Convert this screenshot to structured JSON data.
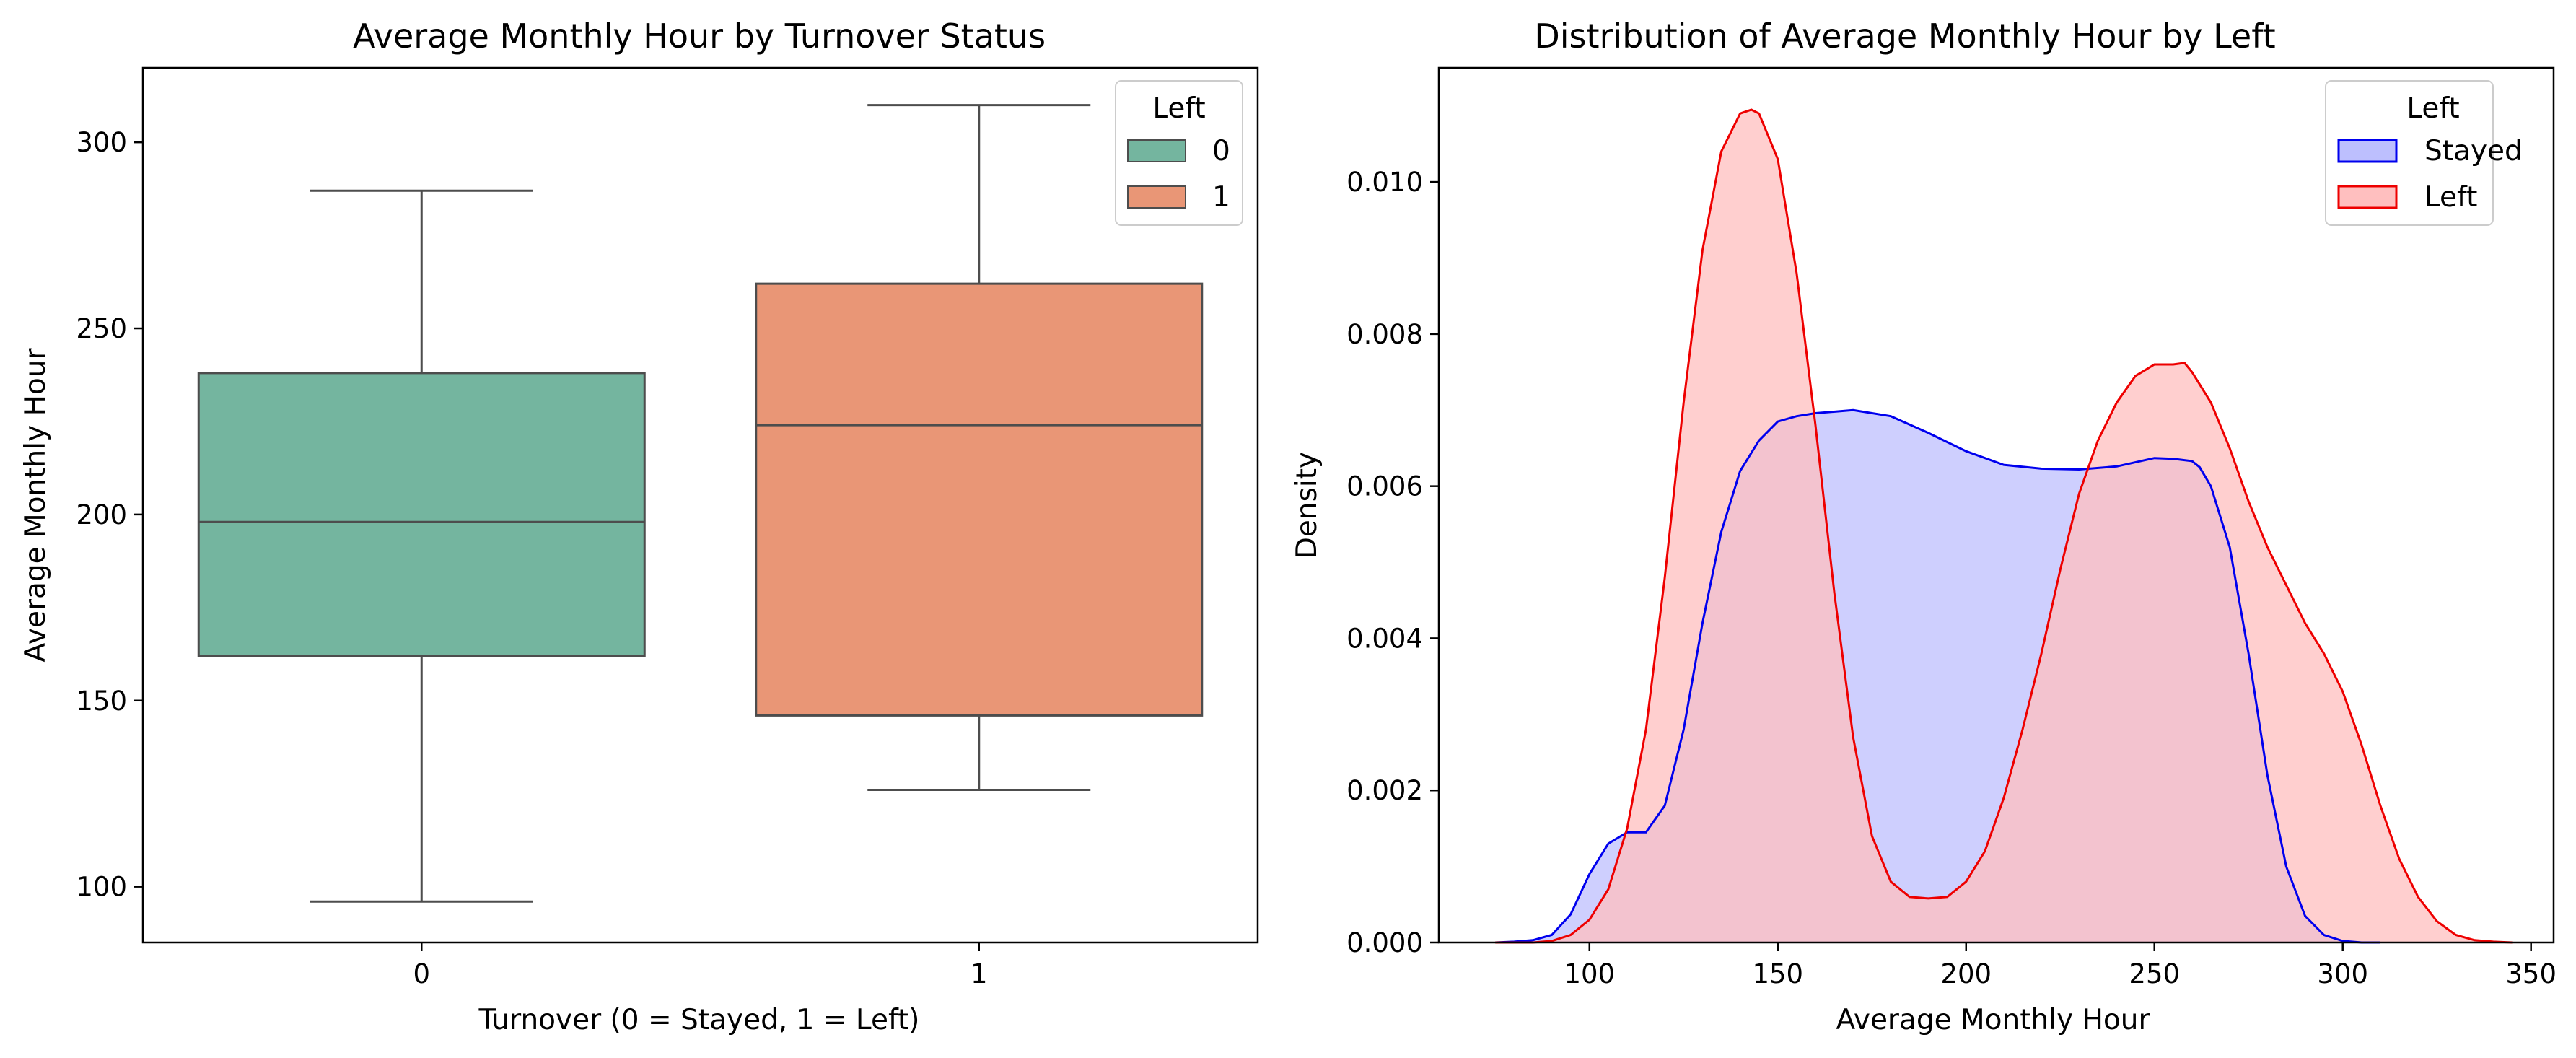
{
  "chart_data": [
    {
      "type": "box",
      "title": "Average Monthly Hour by Turnover Status",
      "xlabel": "Turnover (0 = Stayed, 1 = Left)",
      "ylabel": "Average Monthly Hour",
      "categories": [
        "0",
        "1"
      ],
      "ylim": [
        85,
        320
      ],
      "yticks": [
        100,
        150,
        200,
        250,
        300
      ],
      "boxes": [
        {
          "category": "0",
          "whisker_low": 96,
          "q1": 162,
          "median": 198,
          "q3": 238,
          "whisker_high": 287,
          "color": "#74b59f"
        },
        {
          "category": "1",
          "whisker_low": 126,
          "q1": 146,
          "median": 224,
          "q3": 262,
          "whisker_high": 310,
          "color": "#e99676"
        }
      ],
      "legend": {
        "title": "Left",
        "position": "top-right",
        "entries": [
          {
            "label": "0",
            "color": "#74b59f"
          },
          {
            "label": "1",
            "color": "#e99676"
          }
        ]
      },
      "grid": false
    },
    {
      "type": "area",
      "title": "Distribution of Average Monthly Hour  by Left",
      "xlabel": "Average Monthly Hour",
      "ylabel": "Density",
      "xlim": [
        60,
        356
      ],
      "ylim": [
        0,
        0.0115
      ],
      "xticks": [
        100,
        150,
        200,
        250,
        300,
        350
      ],
      "yticks": [
        0.0,
        0.002,
        0.004,
        0.006,
        0.008,
        0.01
      ],
      "ytick_labels": [
        "0.000",
        "0.002",
        "0.004",
        "0.006",
        "0.008",
        "0.010"
      ],
      "series": [
        {
          "name": "Stayed",
          "line_color": "#0000ee",
          "fill_color": "#bdbffe",
          "x": [
            75,
            80,
            85,
            90,
            95,
            100,
            105,
            110,
            115,
            120,
            125,
            130,
            135,
            140,
            145,
            150,
            155,
            160,
            170,
            180,
            190,
            200,
            210,
            220,
            230,
            240,
            250,
            255,
            260,
            262,
            265,
            270,
            275,
            280,
            285,
            290,
            295,
            300,
            305,
            310
          ],
          "y": [
            0,
            1e-05,
            3e-05,
            0.0001,
            0.00037,
            0.0009,
            0.0013,
            0.00145,
            0.00145,
            0.0018,
            0.0028,
            0.0042,
            0.0054,
            0.0062,
            0.0066,
            0.00685,
            0.00692,
            0.00696,
            0.007,
            0.00692,
            0.0067,
            0.00646,
            0.00628,
            0.00623,
            0.00622,
            0.00626,
            0.00637,
            0.00636,
            0.00633,
            0.00625,
            0.006,
            0.0052,
            0.0038,
            0.0022,
            0.001,
            0.00035,
            0.0001,
            2e-05,
            0,
            0
          ]
        },
        {
          "name": "Left",
          "line_color": "#ee0000",
          "fill_color": "#ffbfbf",
          "x": [
            75,
            85,
            90,
            95,
            100,
            105,
            110,
            115,
            120,
            125,
            130,
            135,
            140,
            143,
            145,
            150,
            155,
            160,
            165,
            170,
            175,
            180,
            185,
            190,
            195,
            200,
            205,
            210,
            215,
            220,
            225,
            230,
            235,
            240,
            245,
            250,
            255,
            258,
            260,
            265,
            270,
            275,
            280,
            285,
            290,
            295,
            300,
            305,
            310,
            315,
            320,
            325,
            330,
            335,
            340,
            345
          ],
          "y": [
            0,
            0,
            2e-05,
            0.0001,
            0.0003,
            0.0007,
            0.0015,
            0.0028,
            0.0048,
            0.0071,
            0.0091,
            0.0104,
            0.0109,
            0.01095,
            0.0109,
            0.0103,
            0.0088,
            0.0068,
            0.0046,
            0.0027,
            0.0014,
            0.0008,
            0.0006,
            0.00058,
            0.0006,
            0.0008,
            0.0012,
            0.0019,
            0.0028,
            0.0038,
            0.0049,
            0.0059,
            0.0066,
            0.0071,
            0.00745,
            0.0076,
            0.0076,
            0.00762,
            0.0075,
            0.0071,
            0.0065,
            0.0058,
            0.0052,
            0.0047,
            0.0042,
            0.0038,
            0.0033,
            0.0026,
            0.0018,
            0.0011,
            0.0006,
            0.00028,
            0.0001,
            3e-05,
            1e-05,
            0
          ]
        }
      ],
      "legend": {
        "title": "Left",
        "position": "top-right",
        "entries": [
          {
            "label": "Stayed",
            "line_color": "#0000ee",
            "fill_color": "#bdbffe"
          },
          {
            "label": "Left",
            "line_color": "#ee0000",
            "fill_color": "#ffbfbf"
          }
        ]
      },
      "grid": false
    }
  ]
}
